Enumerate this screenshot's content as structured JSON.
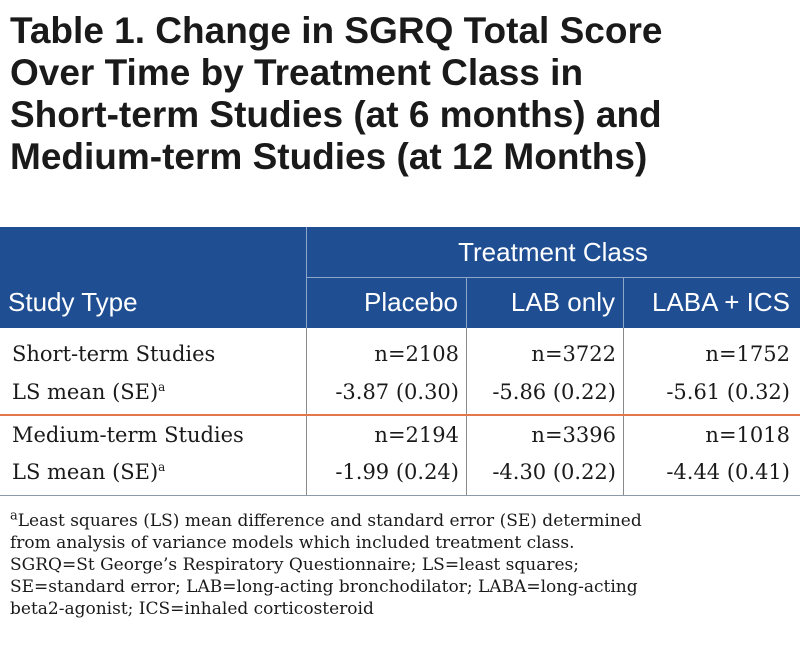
{
  "title": {
    "line1": "Table 1. Change in SGRQ Total Score",
    "line2": "Over Time by Treatment Class in",
    "line3": "Short-term Studies (at 6 months) and",
    "line4": "Medium-term Studies (at 12 Months)"
  },
  "header": {
    "group_label": "Treatment Class",
    "row_label": "Study Type",
    "columns": [
      "Placebo",
      "LAB only",
      "LABA + ICS"
    ]
  },
  "rows": [
    {
      "label": "Short-term Studies",
      "sup": "",
      "values": [
        "n=2108",
        "n=3722",
        "n=1752"
      ]
    },
    {
      "label": "LS mean (SE)",
      "sup": "a",
      "values": [
        "-3.87 (0.30)",
        "-5.86 (0.22)",
        "-5.61 (0.32)"
      ]
    },
    {
      "label": "Medium-term Studies",
      "sup": "",
      "values": [
        "n=2194",
        "n=3396",
        "n=1018"
      ]
    },
    {
      "label": "LS mean (SE)",
      "sup": "a",
      "values": [
        "-1.99 (0.24)",
        "-4.30 (0.22)",
        "-4.44 (0.41)"
      ]
    }
  ],
  "footnote": {
    "marker": "a",
    "line1": "Least squares (LS) mean difference and standard error (SE) determined",
    "line2": "from analysis of variance models which included treatment class.",
    "line3": "SGRQ=St George’s Respiratory Questionnaire; LS=least squares;",
    "line4": "SE=standard error; LAB=long-acting bronchodilator; LABA=long-acting",
    "line5": "beta2-agonist; ICS=inhaled corticosteroid"
  },
  "colors": {
    "header_bg": "#1f4e93",
    "group_separator": "#e3774a"
  }
}
